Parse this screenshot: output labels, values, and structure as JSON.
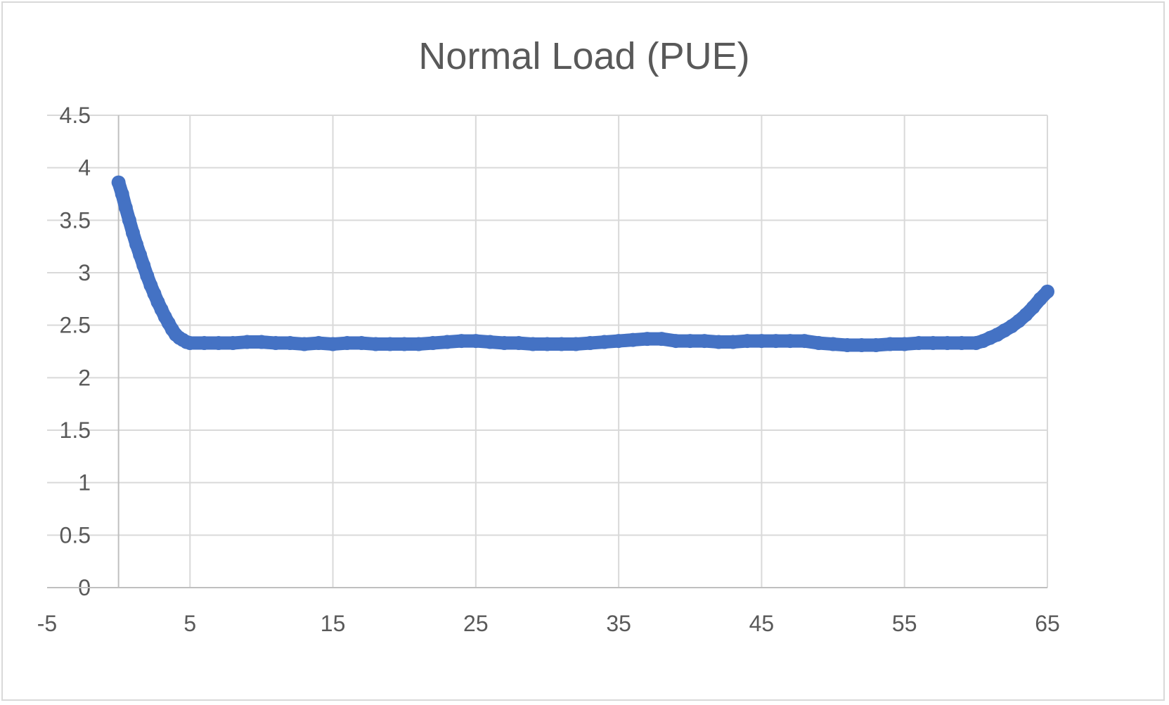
{
  "chart_data": {
    "type": "scatter",
    "title": "Normal Load (PUE)",
    "xlabel": "",
    "ylabel": "",
    "xlim": [
      -5,
      65
    ],
    "ylim": [
      0,
      4.5
    ],
    "x_ticks": [
      -5,
      5,
      15,
      25,
      35,
      45,
      55,
      65
    ],
    "y_ticks": [
      0,
      0.5,
      1,
      1.5,
      2,
      2.5,
      3,
      3.5,
      4,
      4.5
    ],
    "x_tick_labels": [
      "-5",
      "5",
      "15",
      "25",
      "35",
      "45",
      "55",
      "65"
    ],
    "y_tick_labels": [
      "0",
      "0.5",
      "1",
      "1.5",
      "2",
      "2.5",
      "3",
      "3.5",
      "4",
      "4.5"
    ],
    "grid": true,
    "legend": "none",
    "series": [
      {
        "color": "#4472c4",
        "points": [
          [
            0,
            3.86
          ],
          [
            0.25,
            3.75
          ],
          [
            0.5,
            3.62
          ],
          [
            0.75,
            3.5
          ],
          [
            1,
            3.38
          ],
          [
            1.25,
            3.27
          ],
          [
            1.5,
            3.17
          ],
          [
            1.75,
            3.07
          ],
          [
            2,
            2.97
          ],
          [
            2.25,
            2.88
          ],
          [
            2.5,
            2.8
          ],
          [
            2.75,
            2.72
          ],
          [
            3,
            2.65
          ],
          [
            3.25,
            2.58
          ],
          [
            3.5,
            2.52
          ],
          [
            3.75,
            2.46
          ],
          [
            4,
            2.41
          ],
          [
            4.25,
            2.38
          ],
          [
            4.5,
            2.36
          ],
          [
            4.75,
            2.34
          ],
          [
            5,
            2.33
          ],
          [
            6,
            2.33
          ],
          [
            7,
            2.33
          ],
          [
            8,
            2.33
          ],
          [
            9,
            2.34
          ],
          [
            10,
            2.34
          ],
          [
            11,
            2.33
          ],
          [
            12,
            2.33
          ],
          [
            13,
            2.32
          ],
          [
            14,
            2.33
          ],
          [
            15,
            2.32
          ],
          [
            16,
            2.33
          ],
          [
            17,
            2.33
          ],
          [
            18,
            2.32
          ],
          [
            19,
            2.32
          ],
          [
            20,
            2.32
          ],
          [
            21,
            2.32
          ],
          [
            22,
            2.33
          ],
          [
            23,
            2.34
          ],
          [
            24,
            2.35
          ],
          [
            25,
            2.35
          ],
          [
            26,
            2.34
          ],
          [
            27,
            2.33
          ],
          [
            28,
            2.33
          ],
          [
            29,
            2.32
          ],
          [
            30,
            2.32
          ],
          [
            31,
            2.32
          ],
          [
            32,
            2.32
          ],
          [
            33,
            2.33
          ],
          [
            34,
            2.34
          ],
          [
            35,
            2.35
          ],
          [
            36,
            2.36
          ],
          [
            37,
            2.37
          ],
          [
            38,
            2.37
          ],
          [
            39,
            2.35
          ],
          [
            40,
            2.35
          ],
          [
            41,
            2.35
          ],
          [
            42,
            2.34
          ],
          [
            43,
            2.34
          ],
          [
            44,
            2.35
          ],
          [
            45,
            2.35
          ],
          [
            46,
            2.35
          ],
          [
            47,
            2.35
          ],
          [
            48,
            2.35
          ],
          [
            49,
            2.33
          ],
          [
            50,
            2.32
          ],
          [
            51,
            2.31
          ],
          [
            52,
            2.31
          ],
          [
            53,
            2.31
          ],
          [
            54,
            2.32
          ],
          [
            55,
            2.32
          ],
          [
            56,
            2.33
          ],
          [
            57,
            2.33
          ],
          [
            58,
            2.33
          ],
          [
            59,
            2.33
          ],
          [
            60,
            2.33
          ],
          [
            60.5,
            2.35
          ],
          [
            61,
            2.38
          ],
          [
            61.5,
            2.41
          ],
          [
            62,
            2.45
          ],
          [
            62.5,
            2.49
          ],
          [
            63,
            2.54
          ],
          [
            63.5,
            2.6
          ],
          [
            64,
            2.67
          ],
          [
            64.5,
            2.75
          ],
          [
            65,
            2.82
          ]
        ]
      }
    ]
  }
}
